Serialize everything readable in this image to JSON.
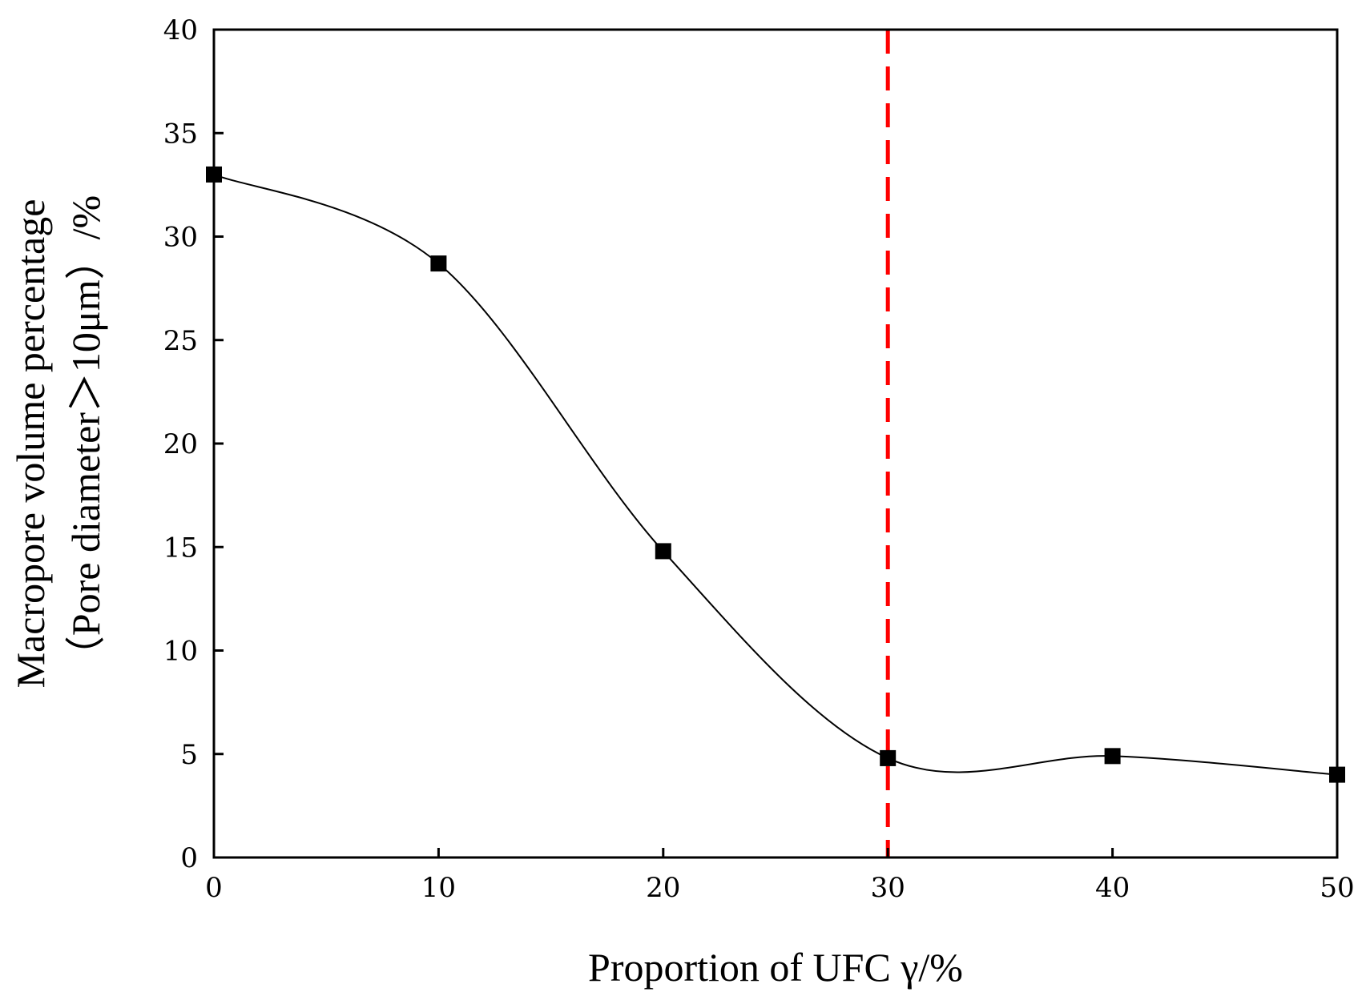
{
  "chart_data": {
    "type": "line",
    "xlabel": "Proportion of UFC γ/%",
    "ylabel_line1": "Macropore volume percentage",
    "ylabel_line2": "（Pore diameter＞10μm）/%",
    "x": [
      0,
      10,
      20,
      30,
      40,
      50
    ],
    "y": [
      33.0,
      28.7,
      14.8,
      4.8,
      4.9,
      4.0
    ],
    "xlim": [
      0,
      50
    ],
    "ylim": [
      0,
      40
    ],
    "xticks": [
      "0",
      "10",
      "20",
      "30",
      "40",
      "50"
    ],
    "yticks": [
      "0",
      "5",
      "10",
      "15",
      "20",
      "25",
      "30",
      "35",
      "40"
    ],
    "marker": "square",
    "line_style": "smooth spline",
    "reference_line": {
      "orientation": "vertical",
      "x": 30,
      "style": "dashed",
      "color": "#ff0000"
    },
    "colors": {
      "series": "#000000",
      "reference": "#ff0000"
    },
    "grid": false,
    "legend": false
  }
}
